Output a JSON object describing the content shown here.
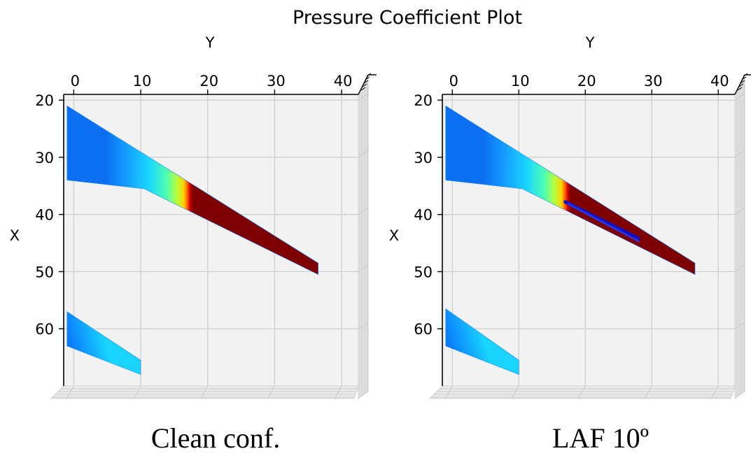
{
  "figure": {
    "title": "Pressure Coefficient Plot"
  },
  "chart_data": [
    {
      "type": "surface-3d-top-view",
      "caption": "Clean conf.",
      "xlabel": "Y",
      "ylabel": "X",
      "xticks": [
        "0",
        "10",
        "20",
        "30",
        "40"
      ],
      "yticks": [
        "20",
        "30",
        "40",
        "50",
        "60"
      ],
      "xlim": [
        -1.5,
        42.5
      ],
      "ylim": [
        19,
        70
      ],
      "x_axis_position": "top",
      "y_axis_inverted": true,
      "grid": true,
      "colormap": "jet",
      "surfaces": [
        {
          "name": "wing",
          "planform": [
            [
              -1,
              21
            ],
            [
              36.5,
              48.5
            ],
            [
              36.5,
              50.5
            ],
            [
              10.5,
              35.5
            ],
            [
              -1,
              34
            ]
          ],
          "leading_edge_peak": true,
          "suction_band": null
        },
        {
          "name": "tail",
          "planform": [
            [
              -1,
              57
            ],
            [
              10,
              65.5
            ],
            [
              10,
              68
            ],
            [
              -1,
              63
            ]
          ],
          "leading_edge_peak": false,
          "suction_band": null
        }
      ]
    },
    {
      "type": "surface-3d-top-view",
      "caption": "LAF 10º",
      "xlabel": "Y",
      "ylabel": "X",
      "xticks": [
        "0",
        "10",
        "20",
        "30",
        "40"
      ],
      "yticks": [
        "20",
        "30",
        "40",
        "50",
        "60"
      ],
      "xlim": [
        -1.5,
        42.5
      ],
      "ylim": [
        19,
        70
      ],
      "x_axis_position": "top",
      "y_axis_inverted": true,
      "grid": true,
      "colormap": "jet",
      "surfaces": [
        {
          "name": "wing",
          "planform": [
            [
              -1,
              21
            ],
            [
              36.5,
              48.5
            ],
            [
              36.5,
              50.5
            ],
            [
              10.5,
              35.5
            ],
            [
              -1,
              34
            ]
          ],
          "leading_edge_peak": true,
          "suction_band": [
            [
              17,
              37.8
            ],
            [
              28,
              44.2
            ]
          ]
        },
        {
          "name": "tail",
          "planform": [
            [
              -1,
              56.5
            ],
            [
              10,
              65.5
            ],
            [
              10,
              68
            ],
            [
              -1,
              63
            ]
          ],
          "leading_edge_peak": false,
          "suction_band": null
        }
      ]
    }
  ]
}
